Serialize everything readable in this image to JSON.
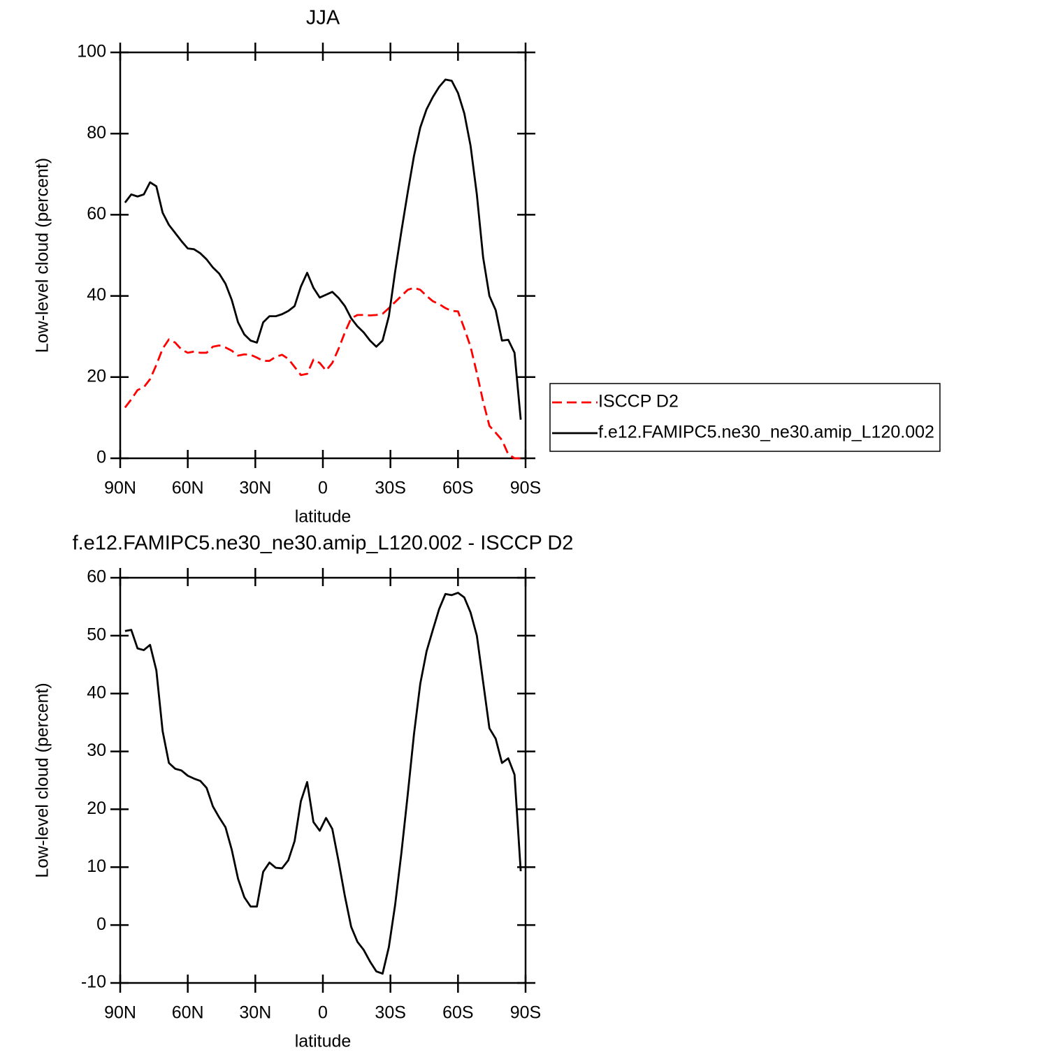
{
  "chart_data": [
    {
      "type": "line",
      "title": "JJA",
      "xlabel": "latitude",
      "ylabel": "Low-level cloud (percent)",
      "x": [
        87.86,
        85.1,
        82.31,
        79.53,
        76.74,
        73.95,
        71.16,
        68.37,
        65.58,
        62.79,
        60.0,
        57.21,
        54.42,
        51.63,
        48.84,
        46.05,
        43.25,
        40.46,
        37.67,
        34.88,
        32.09,
        29.3,
        26.51,
        23.72,
        20.93,
        18.14,
        15.35,
        12.56,
        9.77,
        6.98,
        4.19,
        1.4,
        -1.4,
        -4.19,
        -6.98,
        -9.77,
        -12.56,
        -15.35,
        -18.14,
        -20.93,
        -23.72,
        -26.51,
        -29.3,
        -32.09,
        -34.88,
        -37.67,
        -40.46,
        -43.25,
        -46.05,
        -48.84,
        -51.63,
        -54.42,
        -57.21,
        -60.0,
        -62.79,
        -65.58,
        -68.37,
        -71.16,
        -73.95,
        -76.74,
        -79.53,
        -82.31,
        -85.1,
        -87.86
      ],
      "series": [
        {
          "name": "ISCCP D2",
          "color": "#ff0000",
          "dashed": true,
          "values": [
            12.5,
            14.5,
            16.8,
            17.5,
            19.5,
            23,
            27,
            29.3,
            28.5,
            26.8,
            26,
            26.3,
            26,
            26,
            27.5,
            27.8,
            27.3,
            26.5,
            25.3,
            25.6,
            25.5,
            24.8,
            24,
            24,
            25,
            25.5,
            24.5,
            22.5,
            20.5,
            20.8,
            24.3,
            23.5,
            21.6,
            23.5,
            27,
            31,
            34.5,
            35.3,
            35.3,
            35.2,
            35.3,
            35.6,
            37,
            38.5,
            40,
            41.5,
            42,
            41.5,
            40,
            38.7,
            38,
            37,
            36.3,
            36.2,
            32,
            27.5,
            21,
            14,
            8,
            6.3,
            4.5,
            1,
            0,
            0
          ]
        },
        {
          "name": "f.e12.FAMIPC5.ne30_ne30.amip_L120.002",
          "color": "#000000",
          "dashed": false,
          "values": [
            63,
            65,
            64.5,
            65,
            68,
            67,
            60.5,
            57.5,
            55.5,
            53.5,
            51.7,
            51.5,
            50.5,
            49,
            47,
            45.5,
            43,
            39,
            33.5,
            30.5,
            29,
            28.5,
            33.5,
            35,
            35,
            35.5,
            36.3,
            37.5,
            42.3,
            45.7,
            42,
            39.6,
            40.3,
            41,
            39.5,
            37.5,
            34.5,
            32.5,
            31,
            29,
            27.5,
            29,
            35,
            46,
            56,
            65.5,
            74.5,
            81.5,
            86,
            89,
            91.5,
            93.3,
            93,
            90,
            85,
            77,
            65,
            49.5,
            40,
            36.5,
            29,
            29.2,
            26,
            9.5
          ]
        }
      ],
      "xlim": [
        90,
        -90
      ],
      "xticks": [
        {
          "value": 90,
          "label": "90N"
        },
        {
          "value": 60,
          "label": "60N"
        },
        {
          "value": 30,
          "label": "30N"
        },
        0,
        {
          "value": -30,
          "label": "30S"
        },
        {
          "value": -60,
          "label": "60S"
        },
        {
          "value": -90,
          "label": "90S"
        }
      ],
      "ylim": [
        0,
        100
      ],
      "yticks": [
        0,
        20,
        40,
        60,
        80,
        100
      ],
      "legend": "right"
    },
    {
      "type": "line",
      "title": "f.e12.FAMIPC5.ne30_ne30.amip_L120.002 - ISCCP D2",
      "xlabel": "latitude",
      "ylabel": "Low-level cloud (percent)",
      "x": [
        87.86,
        85.1,
        82.31,
        79.53,
        76.74,
        73.95,
        71.16,
        68.37,
        65.58,
        62.79,
        60.0,
        57.21,
        54.42,
        51.63,
        48.84,
        46.05,
        43.25,
        40.46,
        37.67,
        34.88,
        32.09,
        29.3,
        26.51,
        23.72,
        20.93,
        18.14,
        15.35,
        12.56,
        9.77,
        6.98,
        4.19,
        1.4,
        -1.4,
        -4.19,
        -6.98,
        -9.77,
        -12.56,
        -15.35,
        -18.14,
        -20.93,
        -23.72,
        -26.51,
        -29.3,
        -32.09,
        -34.88,
        -37.67,
        -40.46,
        -43.25,
        -46.05,
        -48.84,
        -51.63,
        -54.42,
        -57.21,
        -60.0,
        -62.79,
        -65.58,
        -68.37,
        -71.16,
        -73.95,
        -76.74,
        -79.53,
        -82.31,
        -85.1,
        -87.86
      ],
      "color": "#000000",
      "values": [
        50.8,
        51,
        47.8,
        47.5,
        48.4,
        44,
        33.5,
        28,
        27,
        26.7,
        25.8,
        25.3,
        24.9,
        23.7,
        20.5,
        18.6,
        16.9,
        13,
        8,
        4.8,
        3.2,
        3.2,
        9.2,
        10.8,
        9.9,
        9.8,
        11.2,
        14.5,
        21.4,
        24.7,
        17.8,
        16.3,
        18.5,
        16.6,
        11,
        5,
        -0.3,
        -2.9,
        -4.3,
        -6.3,
        -8,
        -8.4,
        -3.8,
        3.5,
        12.5,
        22.5,
        33,
        41.7,
        47.3,
        51,
        54.6,
        57.2,
        57,
        57.4,
        56.6,
        54,
        50,
        42,
        34,
        32.2,
        28,
        28.8,
        26,
        9.3
      ],
      "xlim": [
        90,
        -90
      ],
      "xticks": [
        {
          "value": 90,
          "label": "90N"
        },
        {
          "value": 60,
          "label": "60N"
        },
        {
          "value": 30,
          "label": "30N"
        },
        0,
        {
          "value": -30,
          "label": "30S"
        },
        {
          "value": -60,
          "label": "60S"
        },
        {
          "value": -90,
          "label": "90S"
        }
      ],
      "ylim": [
        -10,
        60
      ],
      "yticks": [
        -10,
        0,
        10,
        20,
        30,
        40,
        50,
        60
      ]
    }
  ]
}
